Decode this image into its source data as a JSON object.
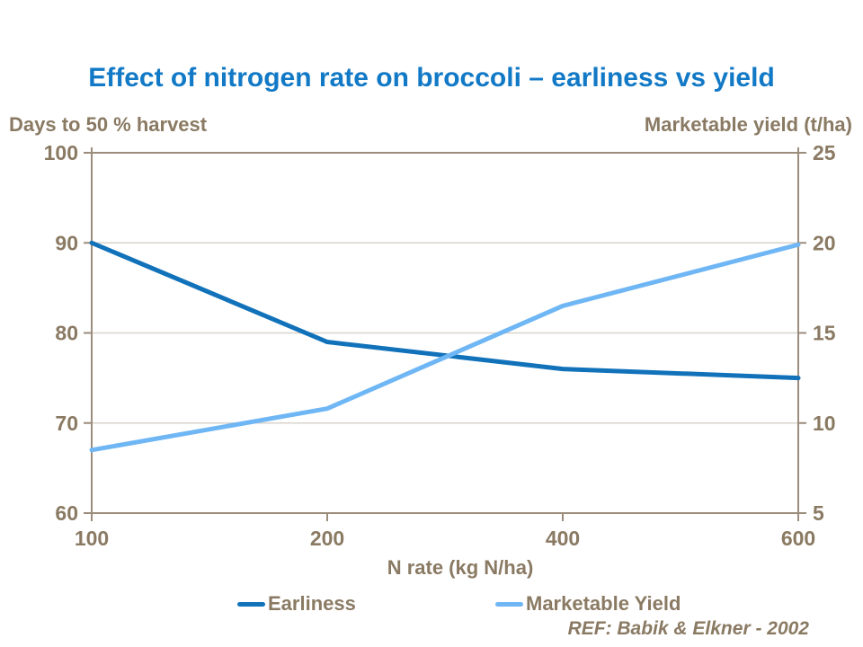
{
  "title": "Effect of nitrogen rate on broccoli – earliness vs yield",
  "footnote": "REF: Babik & Elkner - 2002",
  "colors": {
    "title_blue": "#1279C6",
    "text_brown": "#8A7A63",
    "axis_line": "#9C8C7C",
    "gridline": "#D9D3CC",
    "earliness_line": "#1172BA",
    "yield_line": "#6FB6F5"
  },
  "legend": {
    "items": [
      {
        "label": "Earliness",
        "color": "#1172BA"
      },
      {
        "label": "Marketable Yield",
        "color": "#6FB6F5"
      }
    ]
  },
  "chart_data": {
    "type": "line",
    "title": "Effect of nitrogen rate on broccoli – earliness vs yield",
    "x": [
      100,
      200,
      400,
      600
    ],
    "x_tick_labels": [
      "100",
      "200",
      "400",
      "600"
    ],
    "xlabel": "N rate (kg N/ha)",
    "x_axis_type": "categorical-equal-spacing",
    "left_axis": {
      "label": "Days to 50 % harvest",
      "range": [
        60,
        100
      ],
      "ticks": [
        100,
        90,
        80,
        70,
        60
      ]
    },
    "right_axis": {
      "label": "Marketable yield (t/ha)",
      "range": [
        5,
        25
      ],
      "ticks": [
        25,
        20,
        15,
        10,
        5
      ]
    },
    "series": [
      {
        "name": "Earliness",
        "axis": "left",
        "color": "#1172BA",
        "values": [
          90,
          79,
          76,
          75
        ]
      },
      {
        "name": "Marketable Yield",
        "axis": "right",
        "color": "#6FB6F5",
        "values": [
          8.5,
          10.8,
          16.5,
          19.9
        ]
      }
    ],
    "grid": "horizontal",
    "legend_position": "bottom",
    "annotation": "REF: Babik & Elkner - 2002"
  }
}
